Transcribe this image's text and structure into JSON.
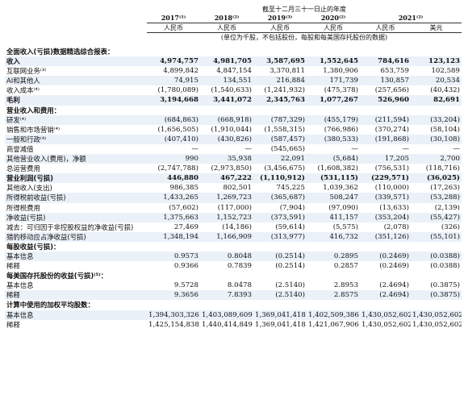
{
  "header": {
    "period": "截至十二月三十一日止的年度",
    "years": [
      "2017⁽¹⁾",
      "2018⁽²⁾",
      "2019⁽³⁾",
      "2020⁽²⁾",
      "2021⁽²⁾"
    ],
    "currencies": [
      "人民币",
      "人民币",
      "人民币",
      "人民币",
      "人民币",
      "美元"
    ],
    "unit_note": "(单位为千股，不包括股份，每股和每美国存托股份的数据)"
  },
  "table": {
    "rows": [
      [
        "全面收入(亏损)数据精选综合报表："
      ],
      [
        "收入",
        "4,974,757",
        "4,981,705",
        "3,587,695",
        "1,552,645",
        "784,616",
        "123,123"
      ],
      [
        "互联网业务⁽³⁾",
        "4,899,842",
        "4,847,154",
        "3,370,811",
        "1,380,906",
        "653,759",
        "102,589"
      ],
      [
        "AI和其他人",
        "74,915",
        "134,551",
        "216,884",
        "171,739",
        "130,857",
        "20,534"
      ],
      [
        "收入成本⁽⁴⁾",
        "(1,780,089)",
        "(1,540,633)",
        "(1,241,932)",
        "(475,378)",
        "(257,656)",
        "(40,432)"
      ],
      [
        "毛利",
        "3,194,668",
        "3,441,072",
        "2,345,763",
        "1,077,267",
        "526,960",
        "82,691"
      ],
      [
        "营业收入和费用："
      ],
      [
        "研发⁽⁴⁾",
        "(684,863)",
        "(668,918)",
        "(787,329)",
        "(455,179)",
        "(211,594)",
        "(33,204)"
      ],
      [
        "销售和市场营销⁽⁴⁾",
        "(1,656,505)",
        "(1,910,044)",
        "(1,558,315)",
        "(766,986)",
        "(370,274)",
        "(58,104)"
      ],
      [
        "一般和行政⁽⁴⁾",
        "(407,410)",
        "(430,826)",
        "(587,457)",
        "(380,533)",
        "(191,868)",
        "(30,108)"
      ],
      [
        "商誉减值",
        "—",
        "—",
        "(545,665)",
        "—",
        "—",
        "—"
      ],
      [
        "其他营业收入(费用)，净额",
        "990",
        "35,938",
        "22,091",
        "(5,684)",
        "17,205",
        "2,700"
      ],
      [
        "总运营费用",
        "(2,747,788)",
        "(2,973,850)",
        "(3,456,675)",
        "(1,608,382)",
        "(756,531)",
        "(118,716)"
      ],
      [
        "营业利润(亏损)",
        "446,880",
        "467,222",
        "(1,110,912)",
        "(531,115)",
        "(229,571)",
        "(36,025)"
      ],
      [
        "其他收入(支出)",
        "986,385",
        "802,501",
        "745,225",
        "1,039,362",
        "(110,000)",
        "(17,263)"
      ],
      [
        "所得税前收益(亏损)",
        "1,433,265",
        "1,269,723",
        "(365,687)",
        "508,247",
        "(339,571)",
        "(53,288)"
      ],
      [
        "所得税费用",
        "(57,602)",
        "(117,000)",
        "(7,904)",
        "(97,090)",
        "(13,633)",
        "(2,139)"
      ],
      [
        "净收益(亏损)",
        "1,375,663",
        "1,152,723",
        "(373,591)",
        "411,157",
        "(353,204)",
        "(55,427)"
      ],
      [
        "减去：可归因于非控股权益的净收益(亏损)",
        "27,469",
        "(14,186)",
        "(59,614)",
        "(5,575)",
        "(2,078)",
        "(326)"
      ],
      [
        "猎豹移动应占净收益(亏损)",
        "1,348,194",
        "1,166,909",
        "(313,977)",
        "416,732",
        "(351,126)",
        "(55,101)"
      ],
      [
        "每股收益(亏损)："
      ],
      [
        "基本信息",
        "0.9573",
        "0.8048",
        "(0.2514)",
        "0.2895",
        "(0.2469)",
        "(0.0388)"
      ],
      [
        "稀释",
        "0.9366",
        "0.7839",
        "(0.2514)",
        "0.2857",
        "(0.2469)",
        "(0.0388)"
      ],
      [
        "每美国存托股份的收益(亏损)⁽⁵⁾："
      ],
      [
        "基本信息",
        "9.5728",
        "8.0478",
        "(2.5140)",
        "2.8953",
        "(2.4694)",
        "(0.3875)"
      ],
      [
        "稀释",
        "9.3656",
        "7.8393",
        "(2.5140)",
        "2.8575",
        "(2.4694)",
        "(0.3875)"
      ],
      [
        "计算中使用的加权平均股数："
      ],
      [
        "基本信息",
        "1,394,303,326",
        "1,403,089,609",
        "1,369,041,418",
        "1,402,509,386",
        "1,430,052,602",
        "1,430,052,602"
      ],
      [
        "稀释",
        "1,425,154,838",
        "1,440,414,849",
        "1,369,041,418",
        "1,421,067,906",
        "1,430,052,602",
        "1,430,052,602"
      ]
    ]
  }
}
